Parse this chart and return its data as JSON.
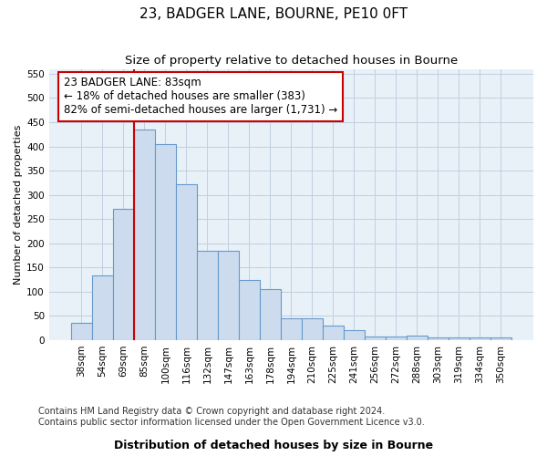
{
  "title": "23, BADGER LANE, BOURNE, PE10 0FT",
  "subtitle": "Size of property relative to detached houses in Bourne",
  "xlabel": "Distribution of detached houses by size in Bourne",
  "ylabel": "Number of detached properties",
  "categories": [
    "38sqm",
    "54sqm",
    "69sqm",
    "85sqm",
    "100sqm",
    "116sqm",
    "132sqm",
    "147sqm",
    "163sqm",
    "178sqm",
    "194sqm",
    "210sqm",
    "225sqm",
    "241sqm",
    "256sqm",
    "272sqm",
    "288sqm",
    "303sqm",
    "319sqm",
    "334sqm",
    "350sqm"
  ],
  "values": [
    35,
    133,
    272,
    435,
    405,
    322,
    184,
    184,
    125,
    105,
    46,
    46,
    30,
    20,
    8,
    8,
    10,
    5,
    5,
    5,
    6
  ],
  "bar_color": "#ccdcee",
  "bar_edge_color": "#6699cc",
  "grid_color": "#c0d0e0",
  "bg_color": "#e8f0f8",
  "vline_x": 2.5,
  "vline_color": "#cc0000",
  "annotation_line1": "23 BADGER LANE: 83sqm",
  "annotation_line2": "← 18% of detached houses are smaller (383)",
  "annotation_line3": "82% of semi-detached houses are larger (1,731) →",
  "annot_box_color": "#cc0000",
  "ylim_max": 560,
  "yticks": [
    0,
    50,
    100,
    150,
    200,
    250,
    300,
    350,
    400,
    450,
    500,
    550
  ],
  "title_fontsize": 11,
  "subtitle_fontsize": 9.5,
  "ylabel_fontsize": 8,
  "xlabel_fontsize": 9,
  "tick_fontsize": 7.5,
  "annot_fontsize": 8.5,
  "footer_fontsize": 7,
  "footer1": "Contains HM Land Registry data © Crown copyright and database right 2024.",
  "footer2": "Contains public sector information licensed under the Open Government Licence v3.0."
}
